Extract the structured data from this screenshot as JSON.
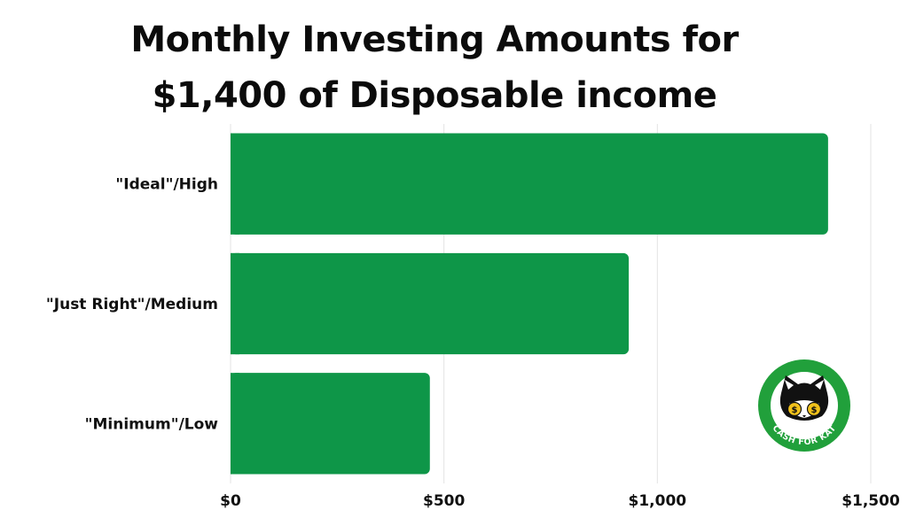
{
  "chart_data": {
    "type": "bar",
    "orientation": "horizontal",
    "title": "Monthly Investing Amounts for $1,400 of Disposable income",
    "title_lines": [
      "Monthly Investing Amounts for",
      "$1,400 of Disposable income"
    ],
    "categories": [
      "\"Ideal\"/High",
      "\"Just Right\"/Medium",
      "\"Minimum\"/Low"
    ],
    "values": [
      1400,
      933,
      467
    ],
    "xlim": [
      0,
      1500
    ],
    "x_ticks": [
      0,
      500,
      1000,
      1500
    ],
    "x_tick_labels": [
      "$0",
      "$500",
      "$1,000",
      "$1,500"
    ],
    "grid": "vertical",
    "legend": "none",
    "bar_color": "#0e9648"
  },
  "logo": {
    "text": "CASH FOR KAT",
    "ring_color": "#21a03b"
  },
  "colors": {
    "grid": "#e3e3e3",
    "text": "#111111"
  }
}
